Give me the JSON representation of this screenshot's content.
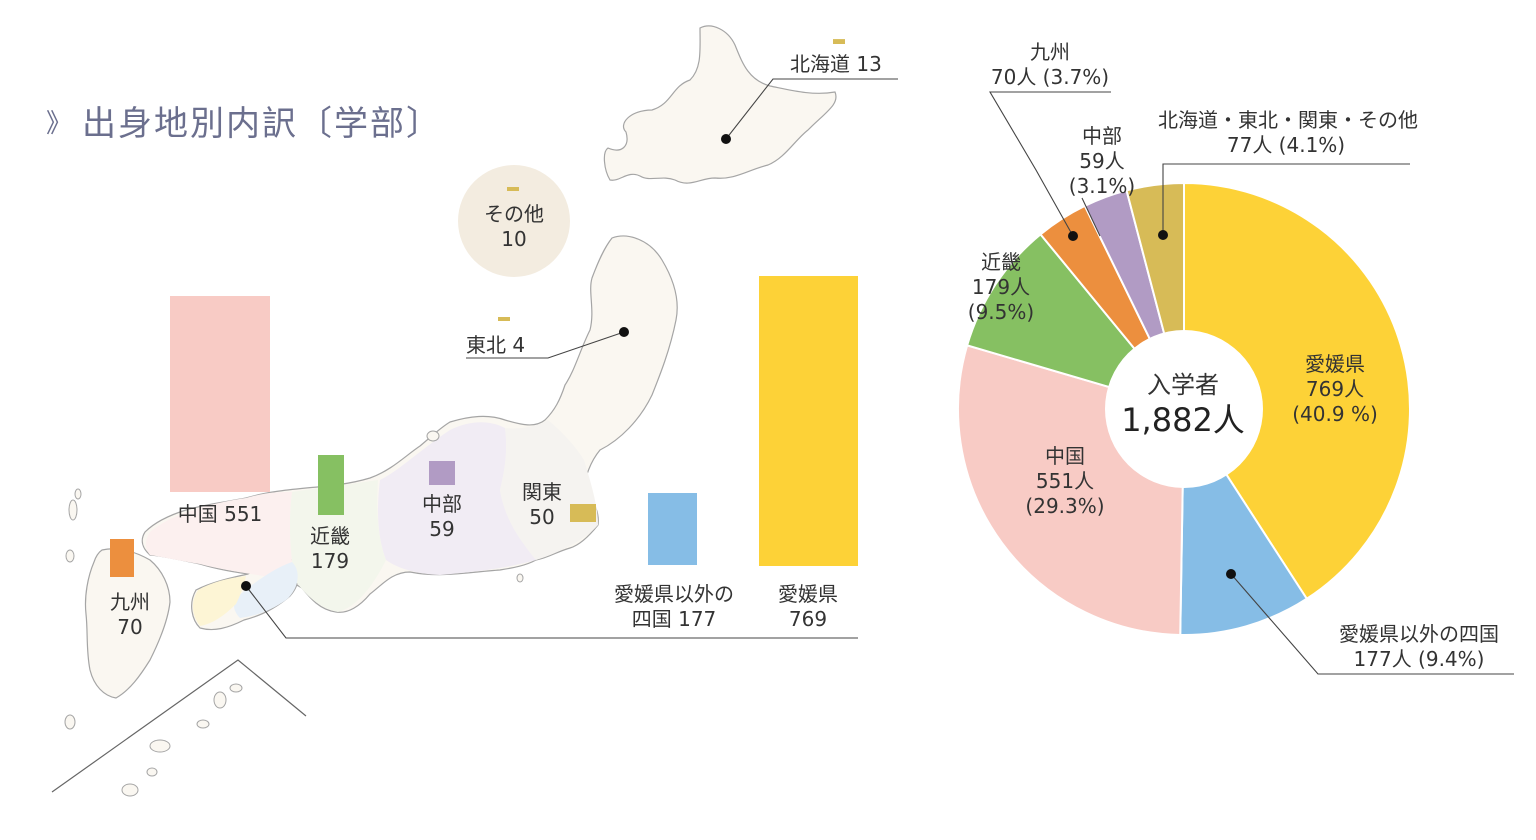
{
  "title": "出身地別内訳〔学部〕",
  "title_mark": "》",
  "colors": {
    "ehime": "#fdd237",
    "shikoku": "#86bde6",
    "chugoku": "#f8cbc5",
    "kinki": "#86c062",
    "kyushu": "#ec8f3e",
    "chubu": "#b19bc4",
    "other": "#d7bb57",
    "map_fill": "#faf7f1",
    "map_stroke": "#999999",
    "other_circle": "#f3ece0",
    "leader": "#444444",
    "title": "#6b6f8e"
  },
  "map_labels": {
    "hokkaido": "北海道 13",
    "tohoku": "東北 4",
    "other_name": "その他",
    "other_value": "10",
    "chugoku": "中国 551",
    "kinki_name": "近畿",
    "kinki_value": "179",
    "chubu_name": "中部",
    "chubu_value": "59",
    "kanto_name": "関東",
    "kanto_value": "50",
    "kyushu_name": "九州",
    "kyushu_value": "70",
    "shikoku_line1": "愛媛県以外の",
    "shikoku_line2": "四国 177",
    "ehime_name": "愛媛県",
    "ehime_value": "769"
  },
  "pie_labels": {
    "ehime": [
      "愛媛県",
      "769人",
      "(40.9 %)"
    ],
    "shikoku": [
      "愛媛県以外の四国",
      "177人 (9.4%)"
    ],
    "chugoku": [
      "中国",
      "551人",
      "(29.3%)"
    ],
    "kinki": [
      "近畿",
      "179人",
      "(9.5%)"
    ],
    "kyushu": [
      "九州",
      "70人 (3.7%)"
    ],
    "chubu": [
      "中部",
      "59人",
      "(3.1%)"
    ],
    "other": [
      "北海道・東北・関東・その他",
      "77人 (4.1%)"
    ]
  },
  "center": {
    "line1": "入学者",
    "line2": "1,882人"
  },
  "chart_data": [
    {
      "type": "bar",
      "categories": [
        "中国",
        "近畿",
        "中部",
        "関東",
        "九州",
        "愛媛県以外の四国",
        "愛媛県",
        "北海道",
        "東北",
        "その他"
      ],
      "values": [
        551,
        179,
        59,
        50,
        70,
        177,
        769,
        13,
        4,
        10
      ]
    },
    {
      "type": "pie",
      "labels": [
        "愛媛県",
        "愛媛県以外の四国",
        "中国",
        "近畿",
        "九州",
        "中部",
        "北海道・東北・関東・その他"
      ],
      "values": [
        769,
        177,
        551,
        179,
        70,
        59,
        77
      ],
      "percents": [
        40.9,
        9.4,
        29.3,
        9.5,
        3.7,
        3.1,
        4.1
      ],
      "total": 1882,
      "start": "12 o'clock",
      "direction": "clockwise",
      "donut": true
    }
  ]
}
